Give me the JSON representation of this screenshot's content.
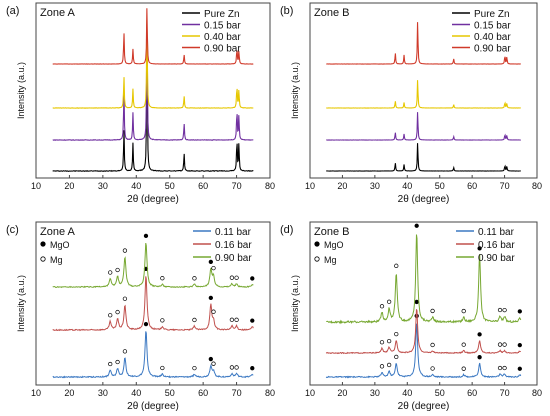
{
  "chart_data": [
    {
      "type": "line",
      "panel": "(a)",
      "zone": "Zone A",
      "xlabel": "2θ (degree)",
      "ylabel": "Intensity (a.u.)",
      "xlim": [
        10,
        80
      ],
      "xticks": [
        10,
        20,
        30,
        40,
        50,
        60,
        70,
        80
      ],
      "legend_position": "top-right",
      "peaks": [
        {
          "x": 36.3,
          "rel": [
            0.28,
            0.42,
            0.35,
            0.55
          ]
        },
        {
          "x": 39.0,
          "rel": [
            0.18,
            0.22,
            0.2,
            0.25
          ]
        },
        {
          "x": 43.2,
          "rel": [
            1.0,
            1.0,
            1.0,
            1.0
          ]
        },
        {
          "x": 54.3,
          "rel": [
            0.12,
            0.14,
            0.13,
            0.16
          ]
        },
        {
          "x": 70.1,
          "rel": [
            0.22,
            0.26,
            0.25,
            0.28
          ]
        },
        {
          "x": 70.7,
          "rel": [
            0.18,
            0.2,
            0.19,
            0.22
          ]
        }
      ],
      "series": [
        {
          "name": "Pure Zn",
          "color": "#000000"
        },
        {
          "name": "0.15 bar",
          "color": "#7030a0"
        },
        {
          "name": "0.40 bar",
          "color": "#e6c700"
        },
        {
          "name": "0.90 bar",
          "color": "#d03a2a"
        }
      ]
    },
    {
      "type": "line",
      "panel": "(b)",
      "zone": "Zone B",
      "xlabel": "2θ (degree)",
      "ylabel": "Intensity (a.u.)",
      "xlim": [
        10,
        80
      ],
      "xticks": [
        10,
        20,
        30,
        40,
        50,
        60,
        70,
        80
      ],
      "legend_position": "top-right",
      "peaks": [
        {
          "x": 36.3,
          "rel": [
            0.28,
            0.26,
            0.24,
            0.25
          ]
        },
        {
          "x": 39.0,
          "rel": [
            0.22,
            0.2,
            0.18,
            0.2
          ]
        },
        {
          "x": 43.2,
          "rel": [
            1.0,
            1.0,
            1.0,
            1.0
          ]
        },
        {
          "x": 54.3,
          "rel": [
            0.12,
            0.12,
            0.12,
            0.12
          ]
        },
        {
          "x": 70.1,
          "rel": [
            0.2,
            0.2,
            0.2,
            0.2
          ]
        },
        {
          "x": 70.7,
          "rel": [
            0.16,
            0.16,
            0.16,
            0.16
          ]
        }
      ],
      "series": [
        {
          "name": "Pure Zn",
          "color": "#000000"
        },
        {
          "name": "0.15 bar",
          "color": "#7030a0"
        },
        {
          "name": "0.40 bar",
          "color": "#e6c700"
        },
        {
          "name": "0.90 bar",
          "color": "#d03a2a"
        }
      ]
    },
    {
      "type": "line",
      "panel": "(c)",
      "zone": "Zone A",
      "xlabel": "2θ (degree)",
      "ylabel": "Intensity (a.u.)",
      "xlim": [
        10,
        80
      ],
      "xticks": [
        10,
        20,
        30,
        40,
        50,
        60,
        70,
        80
      ],
      "legend_position": "top-right",
      "marker_legend": [
        {
          "symbol": "●",
          "label": "MgO"
        },
        {
          "symbol": "○",
          "label": "Mg"
        }
      ],
      "peaks": [
        {
          "x": 32.2,
          "rel": [
            0.12,
            0.15,
            0.16
          ],
          "phase": "Mg"
        },
        {
          "x": 34.4,
          "rel": [
            0.15,
            0.2,
            0.2
          ],
          "phase": "Mg"
        },
        {
          "x": 36.6,
          "rel": [
            0.35,
            0.45,
            0.6
          ],
          "phase": "Mg"
        },
        {
          "x": 42.9,
          "rel": [
            0.85,
            1.0,
            0.9
          ],
          "phase": "MgO"
        },
        {
          "x": 47.8,
          "rel": [
            0.05,
            0.06,
            0.05
          ],
          "phase": "Mg"
        },
        {
          "x": 57.4,
          "rel": [
            0.05,
            0.07,
            0.05
          ],
          "phase": "Mg"
        },
        {
          "x": 62.3,
          "rel": [
            0.2,
            0.45,
            0.35
          ],
          "phase": "MgO"
        },
        {
          "x": 63.1,
          "rel": [
            0.1,
            0.15,
            0.2
          ],
          "phase": "Mg"
        },
        {
          "x": 68.6,
          "rel": [
            0.06,
            0.07,
            0.06
          ],
          "phase": "Mg"
        },
        {
          "x": 70.0,
          "rel": [
            0.06,
            0.07,
            0.06
          ],
          "phase": "Mg"
        },
        {
          "x": 74.7,
          "rel": [
            0.05,
            0.06,
            0.05
          ],
          "phase": "MgO"
        }
      ],
      "series": [
        {
          "name": "0.11 bar",
          "color": "#3b78c2"
        },
        {
          "name": "0.16 bar",
          "color": "#c0504d"
        },
        {
          "name": "0.90 bar",
          "color": "#77a832"
        }
      ]
    },
    {
      "type": "line",
      "panel": "(d)",
      "zone": "Zone B",
      "xlabel": "2θ (degree)",
      "ylabel": "Intensity (a.u.)",
      "xlim": [
        10,
        80
      ],
      "xticks": [
        10,
        20,
        30,
        40,
        50,
        60,
        70,
        80
      ],
      "legend_position": "top-right",
      "marker_legend": [
        {
          "symbol": "●",
          "label": "MgO"
        },
        {
          "symbol": "○",
          "label": "Mg"
        }
      ],
      "peaks": [
        {
          "x": 32.2,
          "rel": [
            0.08,
            0.1,
            0.1
          ],
          "phase": "Mg"
        },
        {
          "x": 34.4,
          "rel": [
            0.1,
            0.12,
            0.14
          ],
          "phase": "Mg"
        },
        {
          "x": 36.6,
          "rel": [
            0.25,
            0.28,
            0.55
          ],
          "phase": "Mg"
        },
        {
          "x": 42.9,
          "rel": [
            1.0,
            1.0,
            1.0
          ],
          "phase": "MgO"
        },
        {
          "x": 47.8,
          "rel": [
            0.04,
            0.04,
            0.05
          ],
          "phase": "Mg"
        },
        {
          "x": 57.4,
          "rel": [
            0.04,
            0.05,
            0.05
          ],
          "phase": "Mg"
        },
        {
          "x": 62.3,
          "rel": [
            0.25,
            0.28,
            0.75
          ],
          "phase": "MgO"
        },
        {
          "x": 68.6,
          "rel": [
            0.05,
            0.05,
            0.06
          ],
          "phase": "Mg"
        },
        {
          "x": 70.0,
          "rel": [
            0.05,
            0.05,
            0.06
          ],
          "phase": "Mg"
        },
        {
          "x": 74.7,
          "rel": [
            0.04,
            0.04,
            0.05
          ],
          "phase": "MgO"
        }
      ],
      "series": [
        {
          "name": "0.11 bar",
          "color": "#3b78c2"
        },
        {
          "name": "0.16 bar",
          "color": "#c0504d"
        },
        {
          "name": "0.90 bar",
          "color": "#77a832"
        }
      ]
    }
  ]
}
